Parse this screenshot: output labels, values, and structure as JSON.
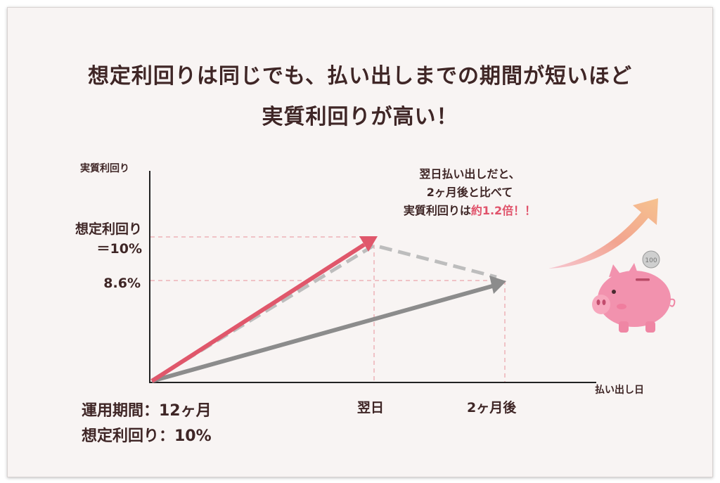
{
  "title": {
    "line1": "想定利回りは同じでも、払い出しまでの期間が短いほど",
    "line2": "実質利回りが高い！"
  },
  "axes": {
    "y_label": "実質利回り",
    "x_label": "払い出し日",
    "y_tick_assumed_line1": "想定利回り",
    "y_tick_assumed_line2": "＝10%",
    "y_tick_real": "8.6%",
    "x_tick_next_day": "翌日",
    "x_tick_two_months": "2ヶ月後"
  },
  "conditions": {
    "line1": "運用期間：12ヶ月",
    "line2": "想定利回り：10%"
  },
  "note": {
    "line1": "翌日払い出しだと、",
    "line2": "2ヶ月後と比べて",
    "line3_prefix": "実質利回りは",
    "line3_highlight": "約1.2倍！！"
  },
  "coin": {
    "label": "100"
  },
  "colors": {
    "text": "#3f2626",
    "highlight": "#e0526a",
    "arrow_red": "#e0576b",
    "arrow_gray": "#8c8c8c",
    "dashed_gray": "#bdbdbd",
    "guide": "#eeb2b8",
    "piggy": "#f292ae",
    "background": "#f8f4f3"
  },
  "icons": {
    "piggy_bank": "piggy-bank-icon",
    "coin": "coin-icon",
    "up_arrow": "rising-arrow-icon"
  }
}
